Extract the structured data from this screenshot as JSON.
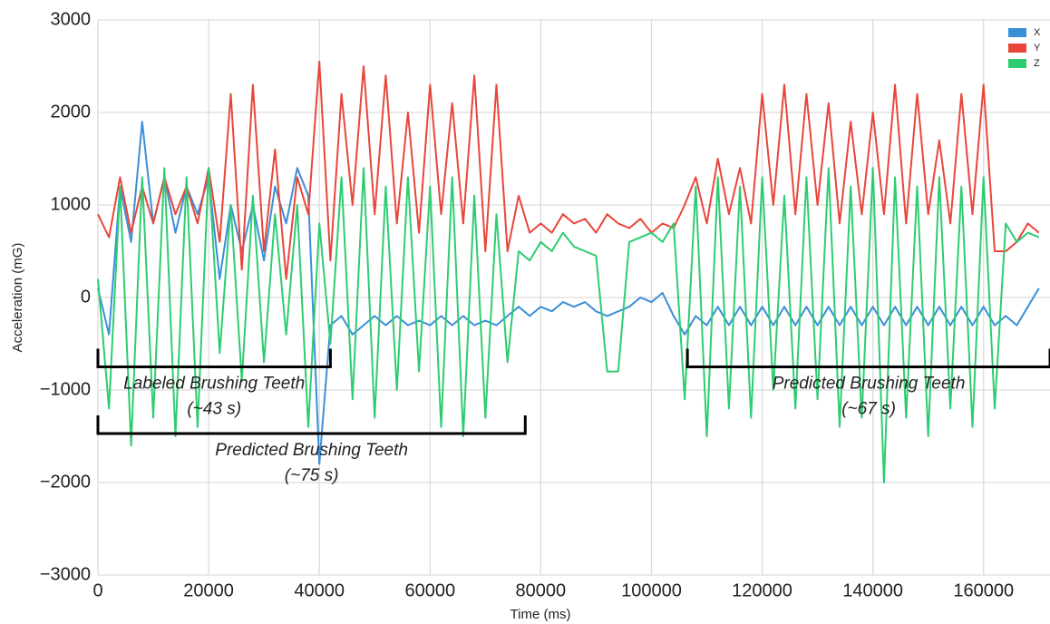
{
  "chart_data": {
    "type": "line",
    "xlabel": "Time (ms)",
    "ylabel": "Acceleration (mG)",
    "x": [
      0,
      2000,
      4000,
      6000,
      8000,
      10000,
      12000,
      14000,
      16000,
      18000,
      20000,
      22000,
      24000,
      26000,
      28000,
      30000,
      32000,
      34000,
      36000,
      38000,
      40000,
      42000,
      44000,
      46000,
      48000,
      50000,
      52000,
      54000,
      56000,
      58000,
      60000,
      62000,
      64000,
      66000,
      68000,
      70000,
      72000,
      74000,
      76000,
      78000,
      80000,
      82000,
      84000,
      86000,
      88000,
      90000,
      92000,
      94000,
      96000,
      98000,
      100000,
      102000,
      104000,
      106000,
      108000,
      110000,
      112000,
      114000,
      116000,
      118000,
      120000,
      122000,
      124000,
      126000,
      128000,
      130000,
      132000,
      134000,
      136000,
      138000,
      140000,
      142000,
      144000,
      146000,
      148000,
      150000,
      152000,
      154000,
      156000,
      158000,
      160000,
      162000,
      164000,
      166000,
      168000,
      170000
    ],
    "series": [
      {
        "name": "X",
        "color": "#3a8fd9",
        "values": [
          100,
          -400,
          1200,
          600,
          1900,
          800,
          1300,
          700,
          1200,
          900,
          1300,
          200,
          1000,
          500,
          1000,
          400,
          1200,
          800,
          1400,
          1100,
          -1800,
          -300,
          -200,
          -400,
          -300,
          -200,
          -300,
          -200,
          -300,
          -250,
          -300,
          -200,
          -300,
          -200,
          -300,
          -250,
          -300,
          -200,
          -100,
          -200,
          -100,
          -150,
          -50,
          -100,
          -50,
          -150,
          -200,
          -150,
          -100,
          0,
          -50,
          50,
          -200,
          -400,
          -200,
          -300,
          -100,
          -300,
          -100,
          -300,
          -100,
          -300,
          -100,
          -300,
          -100,
          -300,
          -100,
          -300,
          -100,
          -300,
          -100,
          -300,
          -100,
          -300,
          -100,
          -300,
          -100,
          -300,
          -100,
          -300,
          -100,
          -300,
          -200,
          -300,
          -100,
          100
        ]
      },
      {
        "name": "Y",
        "color": "#e8463a",
        "values": [
          900,
          650,
          1300,
          700,
          1200,
          800,
          1300,
          900,
          1200,
          800,
          1400,
          600,
          2200,
          300,
          2300,
          500,
          1600,
          200,
          1300,
          900,
          2550,
          400,
          2200,
          1000,
          2500,
          900,
          2400,
          800,
          2000,
          700,
          2300,
          900,
          2100,
          800,
          2400,
          500,
          2300,
          500,
          1100,
          700,
          800,
          700,
          900,
          800,
          850,
          700,
          900,
          800,
          750,
          850,
          700,
          800,
          750,
          1000,
          1300,
          800,
          1500,
          900,
          1400,
          800,
          2200,
          1000,
          2300,
          900,
          2200,
          1000,
          2100,
          800,
          1900,
          900,
          2000,
          900,
          2300,
          800,
          2200,
          900,
          1700,
          800,
          2200,
          900,
          2300,
          500,
          500,
          600,
          800,
          700
        ]
      },
      {
        "name": "Z",
        "color": "#2ecc71",
        "values": [
          200,
          -1200,
          1200,
          -1600,
          1300,
          -1300,
          1400,
          -1500,
          1300,
          -1400,
          1400,
          -600,
          1000,
          -900,
          1100,
          -700,
          900,
          -400,
          1000,
          -1400,
          800,
          -500,
          1300,
          -1100,
          1400,
          -1300,
          1200,
          -1000,
          1300,
          -800,
          1200,
          -1400,
          1300,
          -1500,
          1100,
          -1300,
          900,
          -700,
          500,
          400,
          600,
          500,
          700,
          550,
          500,
          450,
          -800,
          -800,
          600,
          650,
          700,
          600,
          800,
          -1100,
          1200,
          -1500,
          1300,
          -1200,
          1200,
          -1300,
          1300,
          -1000,
          1100,
          -1200,
          1300,
          -1100,
          1400,
          -1400,
          1200,
          -1300,
          1400,
          -2000,
          1300,
          -1300,
          1200,
          -1500,
          1300,
          -1200,
          1200,
          -1400,
          1300,
          -1200,
          800,
          600,
          700,
          650
        ]
      }
    ],
    "xlim": [
      0,
      172000
    ],
    "ylim": [
      -3000,
      3000
    ],
    "xticks": [
      0,
      20000,
      40000,
      60000,
      80000,
      100000,
      120000,
      140000,
      160000
    ],
    "yticks": [
      {
        "value": -3000,
        "label": "−3000"
      },
      {
        "value": -2000,
        "label": "−2000"
      },
      {
        "value": -1000,
        "label": "−1000"
      },
      0,
      1000,
      2000,
      3000
    ],
    "grid": true,
    "legend": "upper right",
    "annotations": [
      {
        "text": "Labeled Brushing Teeth",
        "subtext": "(~43 s)",
        "x": [
          0,
          42000
        ],
        "y": -750
      },
      {
        "text": "Predicted Brushing Teeth",
        "subtext": "(~75 s)",
        "x": [
          0,
          77200
        ],
        "y": -1470
      },
      {
        "text": "Predicted Brushing Teeth",
        "subtext": "(~67 s)",
        "x": [
          106500,
          172000
        ],
        "y": -750
      }
    ]
  }
}
